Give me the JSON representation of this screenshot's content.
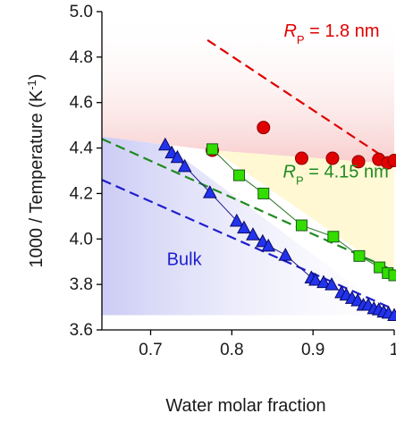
{
  "chart_data": {
    "type": "scatter",
    "xlabel": "Water molar fraction",
    "ylabel_main": "1000 / Temperature (K",
    "ylabel_sup": "-1",
    "ylabel_close": ")",
    "xlim": [
      0.64,
      1.0
    ],
    "ylim": [
      3.6,
      5.0
    ],
    "xticks": [
      0.7,
      0.8,
      0.9,
      1.0
    ],
    "xtick_labels": [
      "0.7",
      "0.8",
      "0.9",
      "1"
    ],
    "yticks": [
      3.6,
      3.8,
      4.0,
      4.2,
      4.4,
      4.6,
      4.8,
      5.0
    ],
    "ytick_labels": [
      "3.6",
      "3.8",
      "4.0",
      "4.2",
      "4.4",
      "4.6",
      "4.8",
      "5.0"
    ],
    "grid": false,
    "colors": {
      "red": "#e00000",
      "green": "#1e8a1e",
      "green_fill": "#33dd00",
      "blue": "#1f1fcc",
      "blue_fill": "#2233ee",
      "axis": "#000000"
    },
    "annotations": [
      {
        "id": "rp18",
        "prefix": "R",
        "sub": "P",
        "suffix": " = 1.8 nm",
        "color": "red",
        "x": 0.864,
        "y": 4.89
      },
      {
        "id": "rp415",
        "prefix": "R",
        "sub": "P",
        "suffix": " = 4.15 nm",
        "color": "green",
        "x": 0.863,
        "y": 4.27
      },
      {
        "id": "bulk",
        "prefix": "Bulk",
        "sub": "",
        "suffix": "",
        "color": "blue",
        "x": 0.72,
        "y": 3.885
      }
    ],
    "series": [
      {
        "marker": "circle",
        "color": "red",
        "x": [
          0.776,
          0.839,
          0.886,
          0.924,
          0.956,
          0.981,
          0.992,
          1.0
        ],
        "y": [
          4.39,
          4.49,
          4.355,
          4.355,
          4.34,
          4.35,
          4.335,
          4.345
        ]
      },
      {
        "marker": "square",
        "color": "green",
        "connected": true,
        "x": [
          0.776,
          0.809,
          0.839,
          0.886,
          0.925,
          0.957,
          0.982,
          0.992,
          1.0
        ],
        "y": [
          4.395,
          4.28,
          4.2,
          4.06,
          4.01,
          3.925,
          3.875,
          3.85,
          3.84
        ]
      },
      {
        "marker": "triangle",
        "color": "blue",
        "connected": true,
        "x": [
          0.718,
          0.726,
          0.733,
          0.742,
          0.773,
          0.806,
          0.815,
          0.826,
          0.838,
          0.845,
          0.866,
          0.898,
          0.903,
          0.913,
          0.923,
          0.935,
          0.941,
          0.948,
          0.955,
          0.962,
          0.968,
          0.975,
          0.981,
          0.987,
          0.993,
          1.0
        ],
        "y": [
          4.415,
          4.38,
          4.36,
          4.32,
          4.205,
          4.08,
          4.05,
          4.02,
          3.99,
          3.97,
          3.93,
          3.83,
          3.82,
          3.81,
          3.8,
          3.765,
          3.755,
          3.74,
          3.73,
          3.71,
          3.71,
          3.695,
          3.69,
          3.68,
          3.675,
          3.665
        ]
      }
    ],
    "trend_lines": [
      {
        "color": "red",
        "x": [
          0.77,
          1.0
        ],
        "y": [
          4.875,
          4.33
        ]
      },
      {
        "color": "green",
        "x": [
          0.64,
          1.0
        ],
        "y": [
          4.44,
          3.86
        ]
      },
      {
        "color": "blue",
        "x": [
          0.64,
          1.0
        ],
        "y": [
          4.26,
          3.69
        ]
      }
    ],
    "shaded_regions": [
      {
        "color": "red",
        "label": "confined 1.8 nm region"
      },
      {
        "color": "yellow",
        "label": "confined 4.15 nm region"
      },
      {
        "color": "blue",
        "label": "bulk region"
      }
    ]
  }
}
